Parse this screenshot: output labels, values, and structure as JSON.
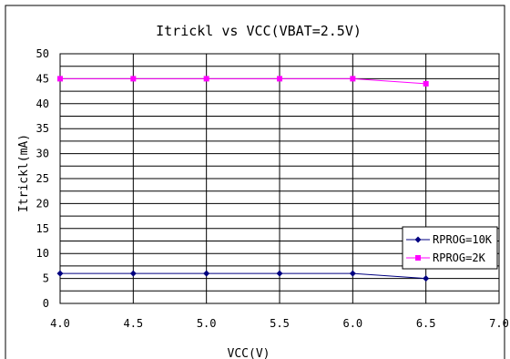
{
  "chart_data": {
    "type": "line",
    "title": "Itrickl vs VCC(VBAT=2.5V)",
    "xlabel": "VCC(V)",
    "ylabel": "Itrickl(mA)",
    "xlim": [
      4.0,
      7.0
    ],
    "ylim": [
      0,
      50
    ],
    "x_ticks": [
      "4.0",
      "4.5",
      "5.0",
      "5.5",
      "6.0",
      "6.5",
      "7.0"
    ],
    "y_ticks": [
      "0",
      "5",
      "10",
      "15",
      "20",
      "25",
      "30",
      "35",
      "40",
      "45",
      "50"
    ],
    "grid": true,
    "legend_position": "bottom-right",
    "series": [
      {
        "name": "RPROG=10K",
        "color": "#000080",
        "marker": "diamond",
        "x": [
          4.0,
          4.5,
          5.0,
          5.5,
          6.0,
          6.5
        ],
        "y": [
          6,
          6,
          6,
          6,
          6,
          5
        ]
      },
      {
        "name": "RPROG=2K",
        "color": "#ff00ff",
        "marker": "square",
        "x": [
          4.0,
          4.5,
          5.0,
          5.5,
          6.0,
          6.5
        ],
        "y": [
          45,
          45,
          45,
          45,
          45,
          44
        ]
      }
    ]
  }
}
